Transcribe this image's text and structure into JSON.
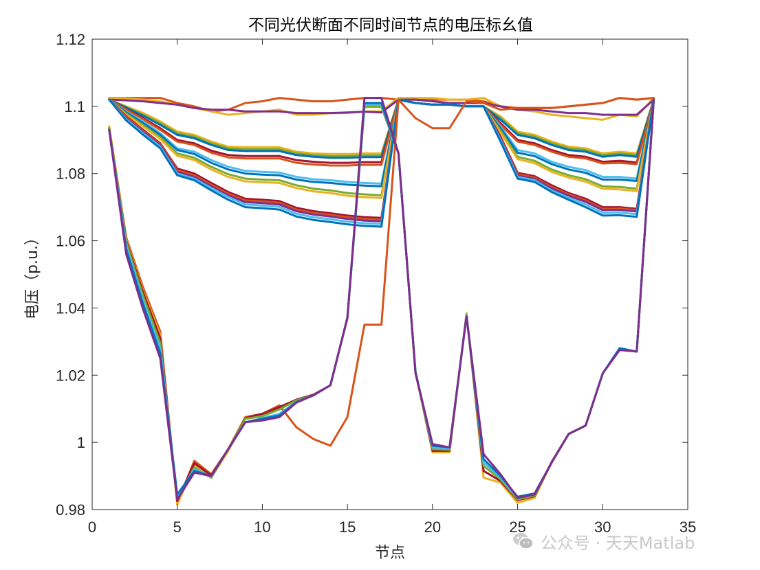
{
  "chart_data": {
    "type": "line",
    "title": "不同光伏断面不同时间节点的电压标幺值",
    "xlabel": "节点",
    "ylabel": "电压（p.u.）",
    "xlim": [
      0,
      35
    ],
    "ylim": [
      0.98,
      1.12
    ],
    "xticks": [
      0,
      5,
      10,
      15,
      20,
      25,
      30,
      35
    ],
    "xtick_labels": [
      "0",
      "5",
      "10",
      "15",
      "20",
      "25",
      "30",
      "35"
    ],
    "yticks": [
      0.98,
      1.0,
      1.02,
      1.04,
      1.06,
      1.08,
      1.1,
      1.12
    ],
    "ytick_labels": [
      "0.98",
      "1",
      "1.02",
      "1.04",
      "1.06",
      "1.08",
      "1.1",
      "1.12"
    ],
    "grid": false,
    "legend": "none",
    "x": [
      1,
      2,
      3,
      4,
      5,
      6,
      7,
      8,
      9,
      10,
      11,
      12,
      13,
      14,
      15,
      16,
      17,
      18,
      19,
      20,
      21,
      22,
      23,
      24,
      25,
      26,
      27,
      28,
      29,
      30,
      31,
      32,
      33
    ],
    "series": [
      {
        "color": "#D95319",
        "values": [
          1.1025,
          1.1025,
          1.1025,
          1.1025,
          1.101,
          1.1,
          1.0985,
          1.099,
          1.101,
          1.1015,
          1.1025,
          1.102,
          1.1015,
          1.1015,
          1.102,
          1.1025,
          1.1025,
          1.102,
          1.102,
          1.102,
          1.102,
          1.102,
          1.1015,
          1.1,
          1.0995,
          1.0995,
          1.0995,
          1.1,
          1.1005,
          1.101,
          1.1025,
          1.102,
          1.1025
        ]
      },
      {
        "color": "#EDB120",
        "values": [
          1.1025,
          1.1023,
          1.102,
          1.1015,
          1.1005,
          1.0995,
          1.0985,
          1.0975,
          1.098,
          1.0985,
          1.099,
          1.0975,
          1.0975,
          1.098,
          1.098,
          1.0985,
          1.0985,
          1.1025,
          1.1025,
          1.1025,
          1.102,
          1.102,
          1.1025,
          1.1,
          1.099,
          1.0985,
          1.0975,
          1.097,
          1.0965,
          1.096,
          1.0975,
          1.097,
          1.1025
        ]
      },
      {
        "color": "#7E2F8E",
        "values": [
          1.102,
          1.1018,
          1.1015,
          1.101,
          1.1005,
          1.0995,
          1.099,
          1.099,
          1.0985,
          1.0985,
          1.0985,
          1.098,
          1.098,
          1.098,
          1.0982,
          1.0984,
          1.0982,
          1.102,
          1.102,
          1.1015,
          1.101,
          1.101,
          1.101,
          1.1,
          1.099,
          1.099,
          1.0985,
          1.098,
          1.098,
          1.0975,
          1.0975,
          1.0975,
          1.102
        ]
      },
      {
        "color": "#EDB120",
        "values": [
          1.102,
          1.1,
          1.098,
          1.0955,
          1.0925,
          1.0915,
          1.0895,
          1.088,
          1.0878,
          1.0878,
          1.0878,
          1.0865,
          1.086,
          1.0858,
          1.0858,
          1.086,
          1.086,
          1.102,
          1.101,
          1.1005,
          1.1005,
          1.1,
          1.1,
          1.097,
          1.0925,
          1.0915,
          1.0895,
          1.088,
          1.0875,
          1.086,
          1.0865,
          1.086,
          1.102
        ]
      },
      {
        "color": "#77AC30",
        "values": [
          1.102,
          1.0998,
          1.0975,
          1.095,
          1.092,
          1.091,
          1.089,
          1.0875,
          1.0872,
          1.0872,
          1.0872,
          1.086,
          1.0855,
          1.0852,
          1.0852,
          1.0854,
          1.0854,
          1.102,
          1.101,
          1.1005,
          1.1005,
          1.1,
          1.1,
          1.0965,
          1.092,
          1.091,
          1.089,
          1.0875,
          1.087,
          1.0855,
          1.086,
          1.0855,
          1.102
        ]
      },
      {
        "color": "#0072BD",
        "values": [
          1.102,
          1.0996,
          1.0972,
          1.0945,
          1.0915,
          1.0905,
          1.0885,
          1.087,
          1.0867,
          1.0867,
          1.0867,
          1.0855,
          1.085,
          1.0847,
          1.0847,
          1.0849,
          1.0849,
          1.102,
          1.101,
          1.1005,
          1.1005,
          1.1,
          1.1,
          1.096,
          1.0915,
          1.0905,
          1.0885,
          1.087,
          1.0865,
          1.085,
          1.0855,
          1.085,
          1.102
        ]
      },
      {
        "color": "#A2142F",
        "values": [
          1.102,
          1.0992,
          1.0965,
          1.0935,
          1.09,
          1.089,
          1.0868,
          1.0855,
          1.0852,
          1.0852,
          1.0852,
          1.084,
          1.0835,
          1.0832,
          1.0832,
          1.0834,
          1.0834,
          1.102,
          1.101,
          1.1005,
          1.1005,
          1.1,
          1.1,
          1.095,
          1.09,
          1.089,
          1.087,
          1.0855,
          1.085,
          1.0835,
          1.0838,
          1.0833,
          1.102
        ]
      },
      {
        "color": "#D95319",
        "values": [
          1.102,
          1.099,
          1.0962,
          1.093,
          1.0895,
          1.0885,
          1.0862,
          1.0848,
          1.0845,
          1.0845,
          1.0845,
          1.0832,
          1.0827,
          1.0824,
          1.0824,
          1.0826,
          1.0826,
          1.102,
          1.101,
          1.1005,
          1.1005,
          1.1,
          1.1,
          1.0945,
          1.0895,
          1.0885,
          1.0865,
          1.085,
          1.0845,
          1.083,
          1.0832,
          1.0828,
          1.102
        ]
      },
      {
        "color": "#4DBEEE",
        "values": [
          1.102,
          1.0985,
          1.0955,
          1.092,
          1.0875,
          1.0865,
          1.084,
          1.082,
          1.0808,
          1.0805,
          1.0803,
          1.079,
          1.0783,
          1.078,
          1.0775,
          1.0772,
          1.077,
          1.102,
          1.101,
          1.1005,
          1.1005,
          1.1,
          1.1,
          1.094,
          1.087,
          1.086,
          1.0835,
          1.082,
          1.081,
          1.079,
          1.079,
          1.0785,
          1.102
        ]
      },
      {
        "color": "#0072BD",
        "values": [
          1.102,
          1.0982,
          1.095,
          1.0915,
          1.087,
          1.0858,
          1.0832,
          1.0812,
          1.08,
          1.0797,
          1.0795,
          1.0782,
          1.0775,
          1.0772,
          1.0767,
          1.0764,
          1.0762,
          1.102,
          1.101,
          1.1005,
          1.1005,
          1.1,
          1.1,
          1.0935,
          1.0862,
          1.0852,
          1.0828,
          1.0812,
          1.0802,
          1.0782,
          1.0782,
          1.0778,
          1.102
        ]
      },
      {
        "color": "#77AC30",
        "values": [
          1.102,
          1.0978,
          1.0944,
          1.0908,
          1.086,
          1.0847,
          1.082,
          1.0798,
          1.0785,
          1.0782,
          1.078,
          1.0765,
          1.0755,
          1.075,
          1.0742,
          1.0738,
          1.0735,
          1.102,
          1.101,
          1.1005,
          1.1005,
          1.1,
          1.1,
          1.0928,
          1.085,
          1.0838,
          1.0812,
          1.0795,
          1.0783,
          1.0762,
          1.076,
          1.0755,
          1.102
        ]
      },
      {
        "color": "#EDB120",
        "values": [
          1.102,
          1.0975,
          1.094,
          1.0903,
          1.0853,
          1.084,
          1.0812,
          1.079,
          1.0777,
          1.0774,
          1.0772,
          1.0757,
          1.0747,
          1.0742,
          1.0734,
          1.073,
          1.0727,
          1.102,
          1.101,
          1.1005,
          1.1005,
          1.1,
          1.1,
          1.0922,
          1.0843,
          1.0831,
          1.0805,
          1.0788,
          1.0776,
          1.0755,
          1.0753,
          1.0748,
          1.102
        ]
      },
      {
        "color": "#A2142F",
        "values": [
          1.102,
          1.097,
          1.093,
          1.089,
          1.0815,
          1.08,
          1.0772,
          1.0745,
          1.0725,
          1.0722,
          1.0718,
          1.0698,
          1.0688,
          1.0682,
          1.0675,
          1.067,
          1.0668,
          1.102,
          1.101,
          1.1005,
          1.1005,
          1.1,
          1.1,
          1.091,
          1.0802,
          1.0792,
          1.0765,
          1.0742,
          1.0725,
          1.07,
          1.07,
          1.0695,
          1.102
        ]
      },
      {
        "color": "#D95319",
        "values": [
          1.102,
          1.0968,
          1.0927,
          1.0887,
          1.081,
          1.0795,
          1.0767,
          1.074,
          1.072,
          1.0717,
          1.0713,
          1.0693,
          1.0683,
          1.0677,
          1.067,
          1.0665,
          1.0663,
          1.102,
          1.101,
          1.1005,
          1.1005,
          1.1,
          1.1,
          1.0907,
          1.0798,
          1.0788,
          1.076,
          1.0738,
          1.072,
          1.0695,
          1.0696,
          1.0691,
          1.102
        ]
      },
      {
        "color": "#7E2F8E",
        "values": [
          1.102,
          1.0965,
          1.0924,
          1.0884,
          1.0805,
          1.079,
          1.0762,
          1.0735,
          1.0715,
          1.0712,
          1.0708,
          1.0688,
          1.0678,
          1.0672,
          1.0665,
          1.066,
          1.0658,
          1.102,
          1.101,
          1.1005,
          1.1005,
          1.1,
          1.1,
          1.0904,
          1.0794,
          1.0784,
          1.0756,
          1.0734,
          1.0716,
          1.0691,
          1.0692,
          1.0687,
          1.102
        ]
      },
      {
        "color": "#4DBEEE",
        "values": [
          1.102,
          1.0962,
          1.092,
          1.088,
          1.08,
          1.0785,
          1.0757,
          1.073,
          1.0708,
          1.0705,
          1.0701,
          1.068,
          1.067,
          1.0664,
          1.0657,
          1.0652,
          1.065,
          1.102,
          1.101,
          1.1005,
          1.1005,
          1.1,
          1.1,
          1.09,
          1.079,
          1.078,
          1.075,
          1.0728,
          1.0708,
          1.0683,
          1.0684,
          1.0679,
          1.102
        ]
      },
      {
        "color": "#0072BD",
        "values": [
          1.102,
          1.0958,
          1.0915,
          1.0875,
          1.0795,
          1.078,
          1.075,
          1.0722,
          1.07,
          1.0697,
          1.0693,
          1.0672,
          1.0662,
          1.0656,
          1.0649,
          1.0644,
          1.0642,
          1.102,
          1.101,
          1.1005,
          1.1005,
          1.1,
          1.1,
          1.0895,
          1.0785,
          1.0775,
          1.0745,
          1.0722,
          1.07,
          1.0675,
          1.0676,
          1.0671,
          1.102
        ]
      },
      {
        "color": "#D95319",
        "values": [
          1.094,
          1.061,
          1.046,
          1.033,
          0.982,
          0.9945,
          0.9905,
          0.998,
          1.0075,
          1.0085,
          1.011,
          1.0045,
          1.001,
          0.999,
          1.0075,
          1.035,
          1.035,
          1.102,
          1.0965,
          1.0935,
          1.0935,
          1.1015,
          1.101,
          1.099,
          1.0995,
          1.0995,
          1.0995,
          1.1,
          1.1005,
          1.101,
          1.1025,
          1.102,
          1.1025
        ]
      },
      {
        "color": "#EDB120",
        "values": [
          1.094,
          1.0605,
          1.045,
          1.032,
          0.9815,
          0.993,
          0.9895,
          0.9975,
          1.0072,
          1.0082,
          1.0102,
          1.0125,
          1.014,
          1.017,
          1.037,
          1.0998,
          1.0998,
          1.086,
          1.021,
          0.997,
          0.997,
          1.0385,
          0.9895,
          0.988,
          0.982,
          0.9835,
          0.994,
          1.0025,
          1.005,
          1.0205,
          1.028,
          1.027,
          1.102
        ]
      },
      {
        "color": "#A2142F",
        "values": [
          1.0935,
          1.06,
          1.0445,
          1.031,
          0.9825,
          0.9938,
          0.9902,
          0.998,
          1.0072,
          1.0085,
          1.0105,
          1.0127,
          1.0142,
          1.017,
          1.0372,
          1.1,
          1.1,
          1.086,
          1.021,
          0.9975,
          0.9975,
          1.038,
          0.9915,
          0.9885,
          0.9828,
          0.984,
          0.9942,
          1.0025,
          1.005,
          1.0205,
          1.028,
          1.027,
          1.102
        ]
      },
      {
        "color": "#77AC30",
        "values": [
          1.0935,
          1.0595,
          1.0435,
          1.0295,
          0.983,
          0.9925,
          0.9895,
          0.998,
          1.007,
          1.0078,
          1.0098,
          1.0125,
          1.014,
          1.017,
          1.037,
          1.1,
          1.1,
          1.086,
          1.021,
          0.998,
          0.9978,
          1.038,
          0.993,
          0.989,
          0.983,
          0.9842,
          0.994,
          1.0025,
          1.005,
          1.0205,
          1.028,
          1.027,
          1.102
        ]
      },
      {
        "color": "#4DBEEE",
        "values": [
          1.093,
          1.0585,
          1.042,
          1.028,
          0.984,
          0.992,
          0.9898,
          0.998,
          1.006,
          1.0072,
          1.0085,
          1.012,
          1.014,
          1.017,
          1.037,
          1.1005,
          1.1005,
          1.086,
          1.021,
          0.9985,
          0.9982,
          1.0378,
          0.994,
          0.9895,
          0.9835,
          0.9845,
          0.994,
          1.0025,
          1.005,
          1.0205,
          1.028,
          1.027,
          1.102
        ]
      },
      {
        "color": "#0072BD",
        "values": [
          1.093,
          1.0575,
          1.041,
          1.0265,
          0.9845,
          0.9915,
          0.99,
          0.998,
          1.006,
          1.007,
          1.008,
          1.012,
          1.014,
          1.017,
          1.037,
          1.101,
          1.101,
          1.086,
          1.021,
          0.999,
          0.9985,
          1.0375,
          0.995,
          0.99,
          0.9838,
          0.9848,
          0.994,
          1.0025,
          1.005,
          1.0205,
          1.028,
          1.027,
          1.102
        ]
      },
      {
        "color": "#7E2F8E",
        "values": [
          1.093,
          1.056,
          1.0395,
          1.025,
          0.983,
          0.991,
          0.99,
          0.998,
          1.006,
          1.0065,
          1.0075,
          1.0118,
          1.014,
          1.017,
          1.037,
          1.1025,
          1.1025,
          1.086,
          1.0205,
          0.9995,
          0.9985,
          1.0375,
          0.9965,
          0.9905,
          0.9835,
          0.9845,
          0.994,
          1.0025,
          1.005,
          1.0205,
          1.0275,
          1.027,
          1.102
        ]
      }
    ]
  },
  "watermark": {
    "text": "公众号 · 天天Matlab",
    "logo": "wechat-logo-icon"
  }
}
